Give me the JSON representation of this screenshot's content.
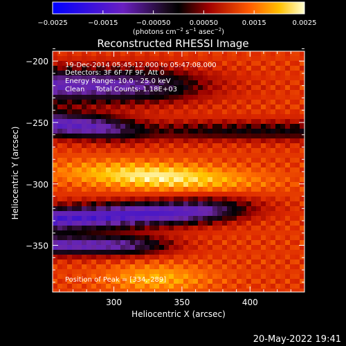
{
  "colorbar": {
    "ticks": [
      {
        "value": -0.0025,
        "label": "−0.0025"
      },
      {
        "value": -0.0015,
        "label": "−0.0015"
      },
      {
        "value": -0.0005,
        "label": "−0.00050"
      },
      {
        "value": 0.0005,
        "label": "0.00050"
      },
      {
        "value": 0.0015,
        "label": "0.0015"
      },
      {
        "value": 0.0025,
        "label": "0.0025"
      }
    ],
    "unit_label_main": "(photons cm",
    "unit_label_exp1": "−2",
    "unit_label_mid": " s",
    "unit_label_exp2": "−1",
    "unit_label_after": " asec",
    "unit_label_exp3": "−2",
    "unit_label_close": ")",
    "range": [
      -0.0025,
      0.0025
    ]
  },
  "chart_data": {
    "type": "heatmap",
    "title": "Reconstructed RHESSI Image",
    "xlabel": "Heliocentric X (arcsec)",
    "ylabel": "Heliocentric Y (arcsec)",
    "xlim": [
      255,
      440
    ],
    "ylim": [
      -388,
      -192
    ],
    "x_ticks": [
      300,
      350,
      400
    ],
    "y_ticks": [
      -200,
      -250,
      -300,
      -350
    ],
    "peak_position": [
      334,
      -289
    ]
  },
  "annotations": {
    "time_range": "19-Dec-2014 05:45:12.000 to 05:47:08.000",
    "detectors": "Detectors: 3F 6F 7F 9F, Att 0",
    "energy_range": "Energy Range: 10.0 - 25.0 keV",
    "clean_info": "Clean     Total Counts: 1.18E+03",
    "peak": "Position of Peak = [334,-289]"
  },
  "footer": {
    "timestamp": "20-May-2022 19:41"
  }
}
